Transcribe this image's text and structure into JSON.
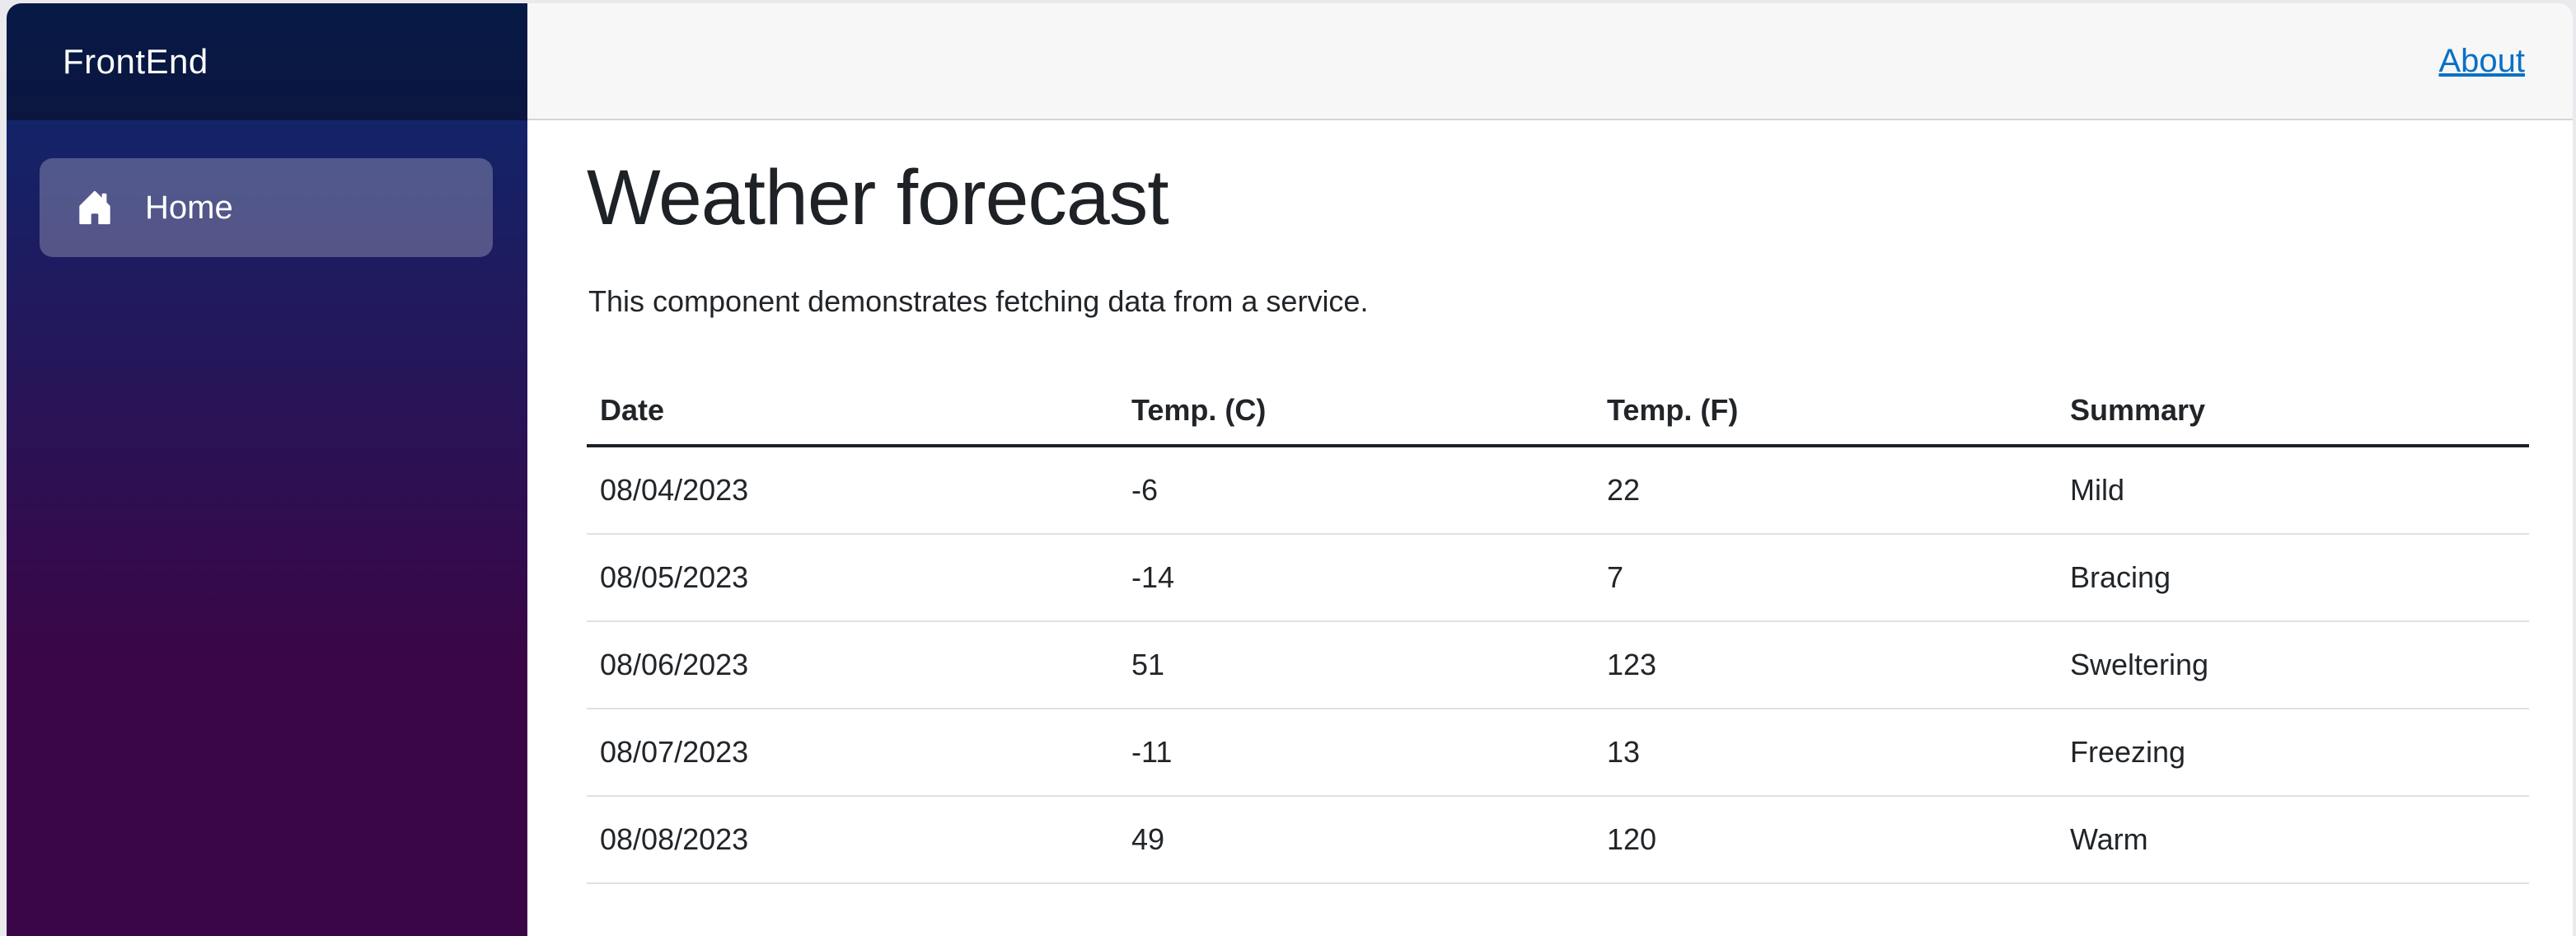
{
  "brand": {
    "title": "FrontEnd"
  },
  "sidebar": {
    "items": [
      {
        "label": "Home",
        "icon": "house-icon",
        "active": true
      }
    ]
  },
  "top_bar": {
    "links": [
      {
        "label": "About"
      }
    ]
  },
  "page": {
    "title": "Weather forecast",
    "description": "This component demonstrates fetching data from a service."
  },
  "forecast_table": {
    "columns": [
      "Date",
      "Temp. (C)",
      "Temp. (F)",
      "Summary"
    ],
    "rows": [
      [
        "08/04/2023",
        "-6",
        "22",
        "Mild"
      ],
      [
        "08/05/2023",
        "-14",
        "7",
        "Bracing"
      ],
      [
        "08/06/2023",
        "51",
        "123",
        "Sweltering"
      ],
      [
        "08/07/2023",
        "-11",
        "13",
        "Freezing"
      ],
      [
        "08/08/2023",
        "49",
        "120",
        "Warm"
      ]
    ]
  },
  "colors": {
    "sidebar_gradient_top": "#0b2a70",
    "sidebar_gradient_bottom": "#3a0647",
    "sidebar_top_overlay": "rgba(0,0,0,0.38)",
    "nav_item_bg": "rgba(255,255,255,0.25)",
    "top_bar_bg": "#f7f7f7",
    "top_bar_border": "#d6d5d5",
    "link_blue": "#0b70c5",
    "text_dark": "#212529",
    "table_row_border": "#dee2e6",
    "table_header_border": "#1d2126",
    "window_gutter": "#e9e9ee"
  }
}
